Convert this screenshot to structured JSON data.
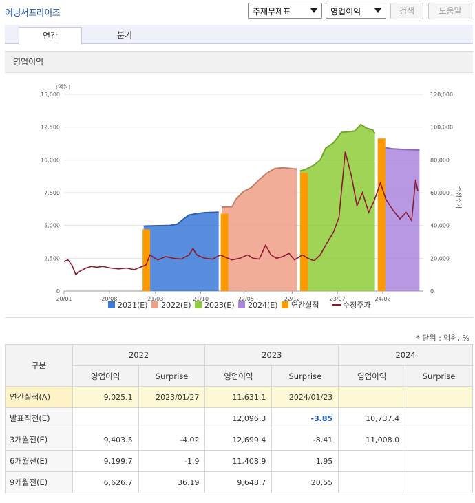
{
  "app": {
    "title": "어닝서프라이즈"
  },
  "controls": {
    "select1_value": "주재무제표",
    "select2_value": "영업이익",
    "search_label": "검색",
    "help_label": "도움말"
  },
  "tabs": [
    {
      "label": "연간"
    },
    {
      "label": "분기"
    }
  ],
  "panel": {
    "title": "영업이익"
  },
  "colors": {
    "e2021": "#3b78d6",
    "e2022": "#ef9f86",
    "e2023": "#8ecc3a",
    "e2024": "#a986de",
    "actual": "#ff9900",
    "price": "#8b1a2f"
  },
  "chart_data": {
    "type": "area",
    "left_axis": {
      "unit_label": "[억원]",
      "ylim": [
        0,
        15000
      ],
      "ticks": [
        "0",
        "2,500",
        "5,000",
        "7,500",
        "10,000",
        "12,500",
        "15,000"
      ]
    },
    "right_axis": {
      "label": "수정주가",
      "ylim": [
        0,
        120000
      ],
      "ticks": [
        "0",
        "20,000",
        "40,000",
        "60,000",
        "80,000",
        "100,000",
        "120,000"
      ]
    },
    "x_ticks": [
      "20/01",
      "20/08",
      "21/03",
      "21/10",
      "22/05",
      "22/12",
      "23/07",
      "24/02"
    ],
    "legend": [
      "2021(E)",
      "2022(E)",
      "2023(E)",
      "2024(E)",
      "연간실적",
      "수정주가"
    ],
    "estimate_series": [
      {
        "name": "2021(E)",
        "start": 2021.02,
        "end": 2021.98,
        "points": [
          [
            2021.02,
            4950
          ],
          [
            2021.2,
            4980
          ],
          [
            2021.35,
            5000
          ],
          [
            2021.45,
            5100
          ],
          [
            2021.52,
            5450
          ],
          [
            2021.6,
            5800
          ],
          [
            2021.7,
            5900
          ],
          [
            2021.8,
            5980
          ],
          [
            2021.9,
            6000
          ],
          [
            2021.98,
            6020
          ]
        ]
      },
      {
        "name": "2022(E)",
        "start": 2022.02,
        "end": 2022.98,
        "points": [
          [
            2022.02,
            6400
          ],
          [
            2022.15,
            6420
          ],
          [
            2022.2,
            7000
          ],
          [
            2022.3,
            7600
          ],
          [
            2022.4,
            7900
          ],
          [
            2022.5,
            8500
          ],
          [
            2022.6,
            9000
          ],
          [
            2022.7,
            9350
          ],
          [
            2022.8,
            9400
          ],
          [
            2022.9,
            9350
          ],
          [
            2022.98,
            9300
          ]
        ]
      },
      {
        "name": "2023(E)",
        "start": 2023.02,
        "end": 2023.98,
        "points": [
          [
            2023.02,
            9150
          ],
          [
            2023.1,
            9300
          ],
          [
            2023.2,
            9600
          ],
          [
            2023.28,
            10000
          ],
          [
            2023.35,
            10900
          ],
          [
            2023.45,
            11300
          ],
          [
            2023.55,
            12100
          ],
          [
            2023.65,
            12150
          ],
          [
            2023.72,
            12200
          ],
          [
            2023.8,
            12700
          ],
          [
            2023.88,
            12400
          ],
          [
            2023.95,
            12300
          ],
          [
            2023.98,
            12000
          ]
        ]
      },
      {
        "name": "2024(E)",
        "start": 2024.02,
        "end": 2024.55,
        "points": [
          [
            2024.02,
            11100
          ],
          [
            2024.1,
            10950
          ],
          [
            2024.2,
            10850
          ],
          [
            2024.35,
            10800
          ],
          [
            2024.45,
            10780
          ],
          [
            2024.55,
            10750
          ]
        ]
      }
    ],
    "actual_bars": [
      {
        "year": 2020,
        "date": 2021.05,
        "value": 4700
      },
      {
        "year": 2021,
        "date": 2022.05,
        "value": 5900
      },
      {
        "year": 2022,
        "date": 2023.07,
        "value": 9025.1
      },
      {
        "year": 2023,
        "date": 2024.06,
        "value": 11631.1
      }
    ],
    "price_series": [
      [
        2020.0,
        18000
      ],
      [
        2020.05,
        19000
      ],
      [
        2020.1,
        16000
      ],
      [
        2020.15,
        10000
      ],
      [
        2020.2,
        12000
      ],
      [
        2020.28,
        14000
      ],
      [
        2020.35,
        15000
      ],
      [
        2020.42,
        14500
      ],
      [
        2020.5,
        15000
      ],
      [
        2020.6,
        14000
      ],
      [
        2020.7,
        13500
      ],
      [
        2020.8,
        14000
      ],
      [
        2020.9,
        13000
      ],
      [
        2021.0,
        15000
      ],
      [
        2021.05,
        16000
      ],
      [
        2021.1,
        22000
      ],
      [
        2021.2,
        19000
      ],
      [
        2021.3,
        21000
      ],
      [
        2021.4,
        20000
      ],
      [
        2021.5,
        19500
      ],
      [
        2021.6,
        22000
      ],
      [
        2021.65,
        26000
      ],
      [
        2021.7,
        22000
      ],
      [
        2021.8,
        20000
      ],
      [
        2021.9,
        19500
      ],
      [
        2022.0,
        22000
      ],
      [
        2022.05,
        21000
      ],
      [
        2022.15,
        19000
      ],
      [
        2022.25,
        20000
      ],
      [
        2022.35,
        22000
      ],
      [
        2022.42,
        20000
      ],
      [
        2022.5,
        19500
      ],
      [
        2022.58,
        28000
      ],
      [
        2022.65,
        22000
      ],
      [
        2022.72,
        20000
      ],
      [
        2022.8,
        21000
      ],
      [
        2022.88,
        23000
      ],
      [
        2022.95,
        19000
      ],
      [
        2023.05,
        22000
      ],
      [
        2023.12,
        20000
      ],
      [
        2023.2,
        18500
      ],
      [
        2023.28,
        22000
      ],
      [
        2023.35,
        28000
      ],
      [
        2023.45,
        36000
      ],
      [
        2023.52,
        45000
      ],
      [
        2023.6,
        85000
      ],
      [
        2023.68,
        70000
      ],
      [
        2023.75,
        52000
      ],
      [
        2023.82,
        60000
      ],
      [
        2023.9,
        48000
      ],
      [
        2023.97,
        55000
      ],
      [
        2024.05,
        66000
      ],
      [
        2024.12,
        56000
      ],
      [
        2024.2,
        50000
      ],
      [
        2024.3,
        44000
      ],
      [
        2024.38,
        48000
      ],
      [
        2024.45,
        43000
      ],
      [
        2024.5,
        68000
      ],
      [
        2024.53,
        61000
      ]
    ]
  },
  "table": {
    "unit_note": "* 단위 : 억원, %",
    "row_header_label": "구분",
    "years": [
      "2022",
      "2023",
      "2024"
    ],
    "sub_headers": [
      "영업이익",
      "Surprise"
    ],
    "rows": [
      {
        "label": "연간실적(A)",
        "highlight": true,
        "cells": [
          "9,025.1",
          "2023/01/27",
          "11,631.1",
          "2024/01/23",
          "",
          ""
        ]
      },
      {
        "label": "발표직전(E)",
        "highlight": false,
        "cells": [
          "",
          "",
          "12,096.3",
          "-3.85",
          "10,737.4",
          ""
        ]
      },
      {
        "label": "3개월전(E)",
        "highlight": false,
        "cells": [
          "9,403.5",
          "-4.02",
          "12,699.4",
          "-8.41",
          "11,008.0",
          ""
        ]
      },
      {
        "label": "6개월전(E)",
        "highlight": false,
        "cells": [
          "9,199.7",
          "-1.9",
          "11,408.9",
          "1.95",
          "",
          ""
        ]
      },
      {
        "label": "9개월전(E)",
        "highlight": false,
        "cells": [
          "6,626.7",
          "36.19",
          "9,648.7",
          "20.55",
          "",
          ""
        ]
      }
    ]
  }
}
